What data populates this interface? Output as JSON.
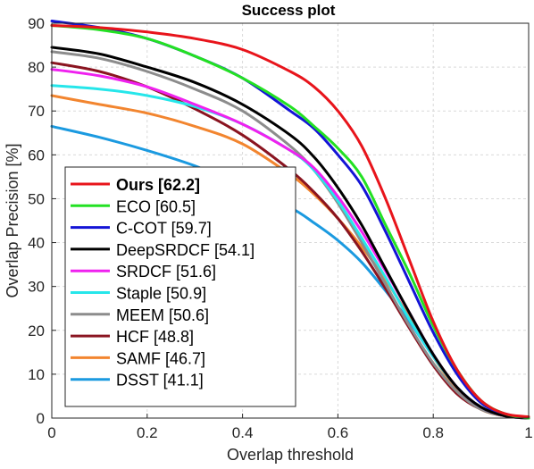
{
  "chart_data": {
    "type": "line",
    "title": "Success plot",
    "xlabel": "Overlap threshold",
    "ylabel": "Overlap Precision [%]",
    "xlim": [
      0,
      1
    ],
    "ylim": [
      0,
      90
    ],
    "xticks": [
      "0",
      "0.2",
      "0.4",
      "0.6",
      "0.8",
      "1"
    ],
    "yticks": [
      "0",
      "10",
      "20",
      "30",
      "40",
      "50",
      "60",
      "70",
      "80",
      "90"
    ],
    "grid": true,
    "legend_position": "lower-left",
    "x": [
      0,
      0.1,
      0.2,
      0.3,
      0.4,
      0.5,
      0.55,
      0.6,
      0.65,
      0.7,
      0.75,
      0.8,
      0.85,
      0.9,
      0.95,
      1.0
    ],
    "series": [
      {
        "name": "Ours [62.2]",
        "color": "#e8141b",
        "bold": true,
        "values": [
          89.5,
          89,
          88,
          86.5,
          84,
          79,
          75.5,
          70,
          62,
          50,
          36,
          22,
          11,
          4,
          1,
          0.3
        ]
      },
      {
        "name": "ECO [60.5]",
        "color": "#23e123",
        "values": [
          89.5,
          88.5,
          86.5,
          82.5,
          77.5,
          71,
          66.5,
          61.5,
          55,
          44,
          33,
          21,
          11,
          4,
          1,
          0
        ]
      },
      {
        "name": "C-COT [59.7]",
        "color": "#1414d6",
        "values": [
          90.5,
          89,
          86.5,
          82.5,
          77.5,
          70,
          66,
          60,
          53,
          42.5,
          31,
          19.5,
          10,
          3.5,
          1,
          0
        ]
      },
      {
        "name": "DeepSRDCF [54.1]",
        "color": "#000000",
        "values": [
          84.5,
          83,
          80,
          76.5,
          71.5,
          64.5,
          59.5,
          52.5,
          44,
          34,
          24,
          14.5,
          7,
          2.5,
          0.5,
          0
        ]
      },
      {
        "name": "SRDCF [51.6]",
        "color": "#ef21ef",
        "values": [
          79.5,
          78,
          75.5,
          71.5,
          67,
          61,
          57,
          50.5,
          42.5,
          33.5,
          24,
          14.5,
          7,
          2.5,
          0.5,
          0
        ]
      },
      {
        "name": "Staple [50.9]",
        "color": "#26e6ea",
        "values": [
          75.8,
          75,
          73.5,
          71,
          67,
          61,
          56.5,
          49.5,
          41,
          32,
          22.5,
          14,
          7,
          2.5,
          0.5,
          0
        ]
      },
      {
        "name": "MEEM [50.6]",
        "color": "#8c8c8c",
        "values": [
          83.5,
          82,
          79,
          75,
          70,
          62,
          56.5,
          49,
          40,
          30.5,
          21,
          12.5,
          6,
          2,
          0.5,
          0
        ]
      },
      {
        "name": "HCF [48.8]",
        "color": "#8a1420",
        "values": [
          81,
          79,
          75.5,
          70.5,
          64.5,
          56.5,
          51.5,
          45.5,
          38,
          29.5,
          20.5,
          12,
          5.5,
          2,
          0.5,
          0
        ]
      },
      {
        "name": "SAMF [46.7]",
        "color": "#f2852f",
        "values": [
          73.5,
          71.5,
          69.5,
          66.5,
          62.5,
          55.5,
          51,
          45.5,
          39,
          31.5,
          23,
          14,
          6.5,
          2,
          0.5,
          0
        ]
      },
      {
        "name": "DSST [41.1]",
        "color": "#1b9ae0",
        "values": [
          66.5,
          64,
          61,
          57.5,
          53,
          48,
          44.5,
          40.5,
          35.5,
          29,
          22,
          14,
          7,
          2.5,
          0.5,
          0
        ]
      }
    ]
  }
}
